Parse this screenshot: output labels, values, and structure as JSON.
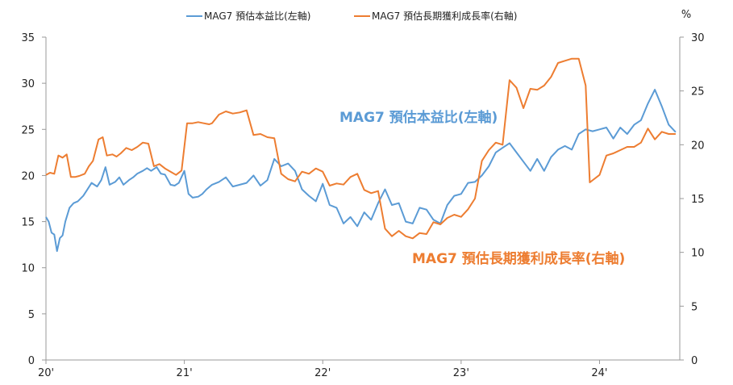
{
  "chart_data": {
    "type": "line",
    "legend_position": "top",
    "grid": false,
    "x_tick_labels": [
      "20'",
      "21'",
      "22'",
      "23'",
      "24'"
    ],
    "x_range": [
      2020.0,
      2024.58
    ],
    "y_left": {
      "range": [
        0,
        35
      ],
      "ticks": [
        0,
        5,
        10,
        15,
        20,
        25,
        30,
        35
      ],
      "unit": ""
    },
    "y_right": {
      "range": [
        0,
        30
      ],
      "ticks": [
        0,
        5,
        10,
        15,
        20,
        25,
        30
      ],
      "unit": "%"
    },
    "series": [
      {
        "name": "MAG7 預估本益比(左軸)",
        "axis": "left",
        "color": "#5b9bd5",
        "annotation": "MAG7 預估本益比(左軸)",
        "x": [
          2020.0,
          2020.02,
          2020.04,
          2020.06,
          2020.08,
          2020.1,
          2020.12,
          2020.14,
          2020.17,
          2020.2,
          2020.23,
          2020.27,
          2020.3,
          2020.33,
          2020.37,
          2020.4,
          2020.43,
          2020.46,
          2020.5,
          2020.53,
          2020.56,
          2020.6,
          2020.63,
          2020.66,
          2020.7,
          2020.73,
          2020.76,
          2020.8,
          2020.83,
          2020.86,
          2020.9,
          2020.93,
          2020.96,
          2021.0,
          2021.03,
          2021.06,
          2021.1,
          2021.13,
          2021.16,
          2021.2,
          2021.25,
          2021.3,
          2021.35,
          2021.4,
          2021.45,
          2021.5,
          2021.55,
          2021.6,
          2021.65,
          2021.7,
          2021.75,
          2021.8,
          2021.85,
          2021.9,
          2021.95,
          2022.0,
          2022.05,
          2022.1,
          2022.15,
          2022.2,
          2022.25,
          2022.3,
          2022.35,
          2022.4,
          2022.45,
          2022.5,
          2022.55,
          2022.6,
          2022.65,
          2022.7,
          2022.75,
          2022.8,
          2022.85,
          2022.9,
          2022.95,
          2023.0,
          2023.05,
          2023.1,
          2023.15,
          2023.2,
          2023.25,
          2023.3,
          2023.35,
          2023.4,
          2023.45,
          2023.5,
          2023.55,
          2023.6,
          2023.65,
          2023.7,
          2023.75,
          2023.8,
          2023.85,
          2023.9,
          2023.95,
          2024.0,
          2024.05,
          2024.1,
          2024.15,
          2024.2,
          2024.25,
          2024.3,
          2024.35,
          2024.4,
          2024.45,
          2024.5,
          2024.55
        ],
        "values": [
          15.5,
          15.0,
          13.8,
          13.6,
          11.8,
          13.2,
          13.5,
          15.0,
          16.5,
          17.0,
          17.2,
          17.8,
          18.5,
          19.2,
          18.8,
          19.5,
          20.9,
          19.0,
          19.3,
          19.8,
          19.0,
          19.5,
          19.8,
          20.2,
          20.5,
          20.8,
          20.5,
          20.9,
          20.2,
          20.1,
          19.0,
          18.9,
          19.2,
          20.5,
          18.0,
          17.6,
          17.7,
          18.0,
          18.5,
          19.0,
          19.3,
          19.8,
          18.8,
          19.0,
          19.2,
          20.0,
          18.9,
          19.5,
          21.8,
          21.0,
          21.3,
          20.5,
          18.5,
          17.8,
          17.2,
          19.1,
          16.8,
          16.5,
          14.8,
          15.5,
          14.5,
          16.0,
          15.2,
          17.0,
          18.5,
          16.8,
          17.0,
          15.0,
          14.8,
          16.5,
          16.3,
          15.2,
          14.8,
          16.8,
          17.8,
          18.0,
          19.2,
          19.3,
          20.0,
          21.0,
          22.5,
          23.0,
          23.5,
          22.5,
          21.5,
          20.5,
          21.8,
          20.5,
          22.0,
          22.8,
          23.2,
          22.8,
          24.5,
          25.0,
          24.8,
          25.0,
          25.2,
          24.0,
          25.2,
          24.5,
          25.5,
          26.0,
          27.8,
          29.3,
          27.5,
          25.5,
          24.7
        ]
      },
      {
        "name": "MAG7 預估長期獲利成長率(右軸)",
        "axis": "right",
        "color": "#ed7d31",
        "annotation": "MAG7 預估長期獲利成長率(右軸)",
        "x": [
          2020.0,
          2020.03,
          2020.06,
          2020.09,
          2020.12,
          2020.15,
          2020.18,
          2020.21,
          2020.24,
          2020.28,
          2020.31,
          2020.34,
          2020.38,
          2020.41,
          2020.44,
          2020.48,
          2020.51,
          2020.54,
          2020.58,
          2020.62,
          2020.66,
          2020.7,
          2020.74,
          2020.78,
          2020.82,
          2020.86,
          2020.9,
          2020.94,
          2020.98,
          2021.02,
          2021.06,
          2021.1,
          2021.14,
          2021.18,
          2021.2,
          2021.25,
          2021.3,
          2021.35,
          2021.4,
          2021.45,
          2021.5,
          2021.55,
          2021.6,
          2021.65,
          2021.7,
          2021.75,
          2021.8,
          2021.85,
          2021.9,
          2021.95,
          2022.0,
          2022.05,
          2022.1,
          2022.15,
          2022.2,
          2022.25,
          2022.3,
          2022.35,
          2022.4,
          2022.45,
          2022.5,
          2022.55,
          2022.6,
          2022.65,
          2022.7,
          2022.75,
          2022.8,
          2022.85,
          2022.9,
          2022.95,
          2023.0,
          2023.05,
          2023.1,
          2023.15,
          2023.2,
          2023.25,
          2023.3,
          2023.35,
          2023.4,
          2023.45,
          2023.5,
          2023.55,
          2023.6,
          2023.65,
          2023.7,
          2023.75,
          2023.8,
          2023.85,
          2023.9,
          2023.93,
          2023.96,
          2024.0,
          2024.05,
          2024.1,
          2024.15,
          2024.2,
          2024.25,
          2024.3,
          2024.35,
          2024.4,
          2024.45,
          2024.5,
          2024.55
        ],
        "values": [
          17.2,
          17.4,
          17.3,
          19.0,
          18.8,
          19.1,
          17.0,
          17.0,
          17.1,
          17.3,
          18.0,
          18.5,
          20.5,
          20.7,
          19.0,
          19.1,
          18.9,
          19.2,
          19.7,
          19.5,
          19.8,
          20.2,
          20.1,
          18.0,
          18.2,
          17.8,
          17.5,
          17.2,
          17.6,
          22.0,
          22.0,
          22.1,
          22.0,
          21.9,
          22.0,
          22.8,
          23.1,
          22.9,
          23.0,
          23.2,
          20.9,
          21.0,
          20.7,
          20.6,
          17.3,
          16.8,
          16.6,
          17.5,
          17.3,
          17.8,
          17.5,
          16.2,
          16.4,
          16.3,
          17.0,
          17.3,
          15.8,
          15.5,
          15.7,
          12.2,
          11.5,
          12.0,
          11.5,
          11.3,
          11.8,
          11.7,
          12.8,
          12.6,
          13.2,
          13.5,
          13.3,
          14.0,
          15.0,
          18.5,
          19.5,
          20.2,
          20.0,
          26.0,
          25.3,
          23.4,
          25.2,
          25.1,
          25.5,
          26.3,
          27.6,
          27.8,
          28.0,
          28.0,
          25.5,
          16.5,
          16.8,
          17.2,
          19.0,
          19.2,
          19.5,
          19.8,
          19.8,
          20.2,
          21.5,
          20.5,
          21.2,
          21.0,
          21.0
        ]
      }
    ]
  }
}
